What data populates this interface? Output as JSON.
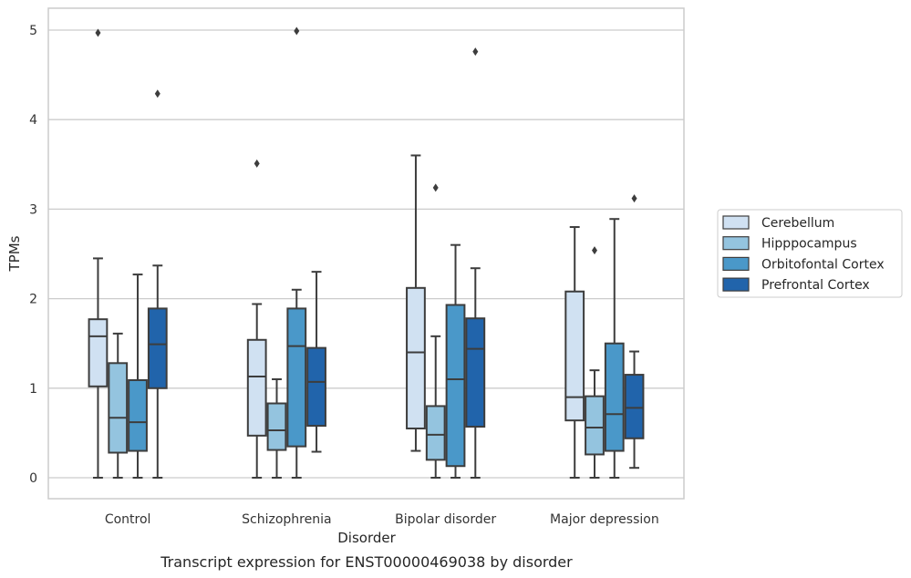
{
  "chart_data": {
    "type": "box",
    "title": "",
    "caption": "Transcript expression for ENST00000469038 by disorder",
    "xlabel": "Disorder",
    "ylabel": "TPMs",
    "ylim": [
      -0.24,
      5.25
    ],
    "yticks": [
      "0",
      "1",
      "2",
      "3",
      "4",
      "5"
    ],
    "grid": "horizontal",
    "legend_position": "right",
    "categories": [
      "Control",
      "Schizophrenia",
      "Bipolar disorder",
      "Major depression"
    ],
    "series": [
      {
        "name": "Cerebellum",
        "color": "#d0e1f2",
        "boxes": [
          {
            "whislo": 0,
            "q1": 1.02,
            "med": 1.58,
            "q3": 1.77,
            "whishi": 2.45,
            "fliers": [
              4.97
            ]
          },
          {
            "whislo": 0,
            "q1": 0.47,
            "med": 1.13,
            "q3": 1.54,
            "whishi": 1.94,
            "fliers": [
              3.51
            ]
          },
          {
            "whislo": 0.3,
            "q1": 0.55,
            "med": 1.4,
            "q3": 2.12,
            "whishi": 3.6,
            "fliers": []
          },
          {
            "whislo": 0,
            "q1": 0.64,
            "med": 0.9,
            "q3": 2.08,
            "whishi": 2.8,
            "fliers": []
          }
        ]
      },
      {
        "name": "Hipppocampus",
        "color": "#94c4df",
        "boxes": [
          {
            "whislo": 0,
            "q1": 0.28,
            "med": 0.67,
            "q3": 1.28,
            "whishi": 1.61,
            "fliers": []
          },
          {
            "whislo": 0,
            "q1": 0.31,
            "med": 0.53,
            "q3": 0.83,
            "whishi": 1.1,
            "fliers": []
          },
          {
            "whislo": 0,
            "q1": 0.2,
            "med": 0.48,
            "q3": 0.8,
            "whishi": 1.58,
            "fliers": [
              3.24
            ]
          },
          {
            "whislo": 0,
            "q1": 0.26,
            "med": 0.56,
            "q3": 0.91,
            "whishi": 1.2,
            "fliers": [
              2.54
            ]
          }
        ]
      },
      {
        "name": "Orbitofontal Cortex",
        "color": "#4a98c9",
        "boxes": [
          {
            "whislo": 0,
            "q1": 0.3,
            "med": 0.62,
            "q3": 1.09,
            "whishi": 2.27,
            "fliers": []
          },
          {
            "whislo": 0,
            "q1": 0.35,
            "med": 1.47,
            "q3": 1.89,
            "whishi": 2.1,
            "fliers": [
              4.99
            ]
          },
          {
            "whislo": 0,
            "q1": 0.13,
            "med": 1.1,
            "q3": 1.93,
            "whishi": 2.6,
            "fliers": []
          },
          {
            "whislo": 0,
            "q1": 0.3,
            "med": 0.71,
            "q3": 1.5,
            "whishi": 2.89,
            "fliers": []
          }
        ]
      },
      {
        "name": "Prefrontal Cortex",
        "color": "#2164ab",
        "boxes": [
          {
            "whislo": 0,
            "q1": 1.0,
            "med": 1.49,
            "q3": 1.89,
            "whishi": 2.37,
            "fliers": [
              4.29
            ]
          },
          {
            "whislo": 0.29,
            "q1": 0.58,
            "med": 1.07,
            "q3": 1.45,
            "whishi": 2.3,
            "fliers": []
          },
          {
            "whislo": 0,
            "q1": 0.57,
            "med": 1.44,
            "q3": 1.78,
            "whishi": 2.34,
            "fliers": [
              4.76
            ]
          },
          {
            "whislo": 0.11,
            "q1": 0.44,
            "med": 0.78,
            "q3": 1.15,
            "whishi": 1.41,
            "fliers": [
              3.12
            ]
          }
        ]
      }
    ]
  }
}
